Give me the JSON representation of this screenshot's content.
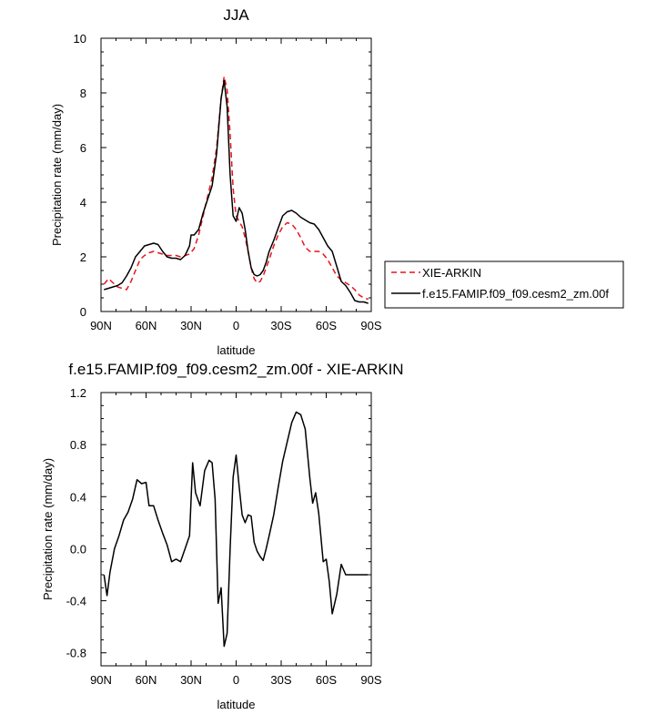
{
  "chart_data": [
    {
      "type": "line",
      "title": "JJA",
      "xlabel": "latitude",
      "ylabel": "Precipitation rate (mm/day)",
      "xlim": [
        -90,
        90
      ],
      "ylim": [
        0,
        10
      ],
      "xticks": [
        {
          "v": -90,
          "label": "90N"
        },
        {
          "v": -60,
          "label": "60N"
        },
        {
          "v": -30,
          "label": "30N"
        },
        {
          "v": 0,
          "label": "0"
        },
        {
          "v": 30,
          "label": "30S"
        },
        {
          "v": 60,
          "label": "60S"
        },
        {
          "v": 90,
          "label": "90S"
        }
      ],
      "yticks": [
        {
          "v": 0,
          "label": "0"
        },
        {
          "v": 2,
          "label": "2"
        },
        {
          "v": 4,
          "label": "4"
        },
        {
          "v": 6,
          "label": "6"
        },
        {
          "v": 8,
          "label": "8"
        },
        {
          "v": 10,
          "label": "10"
        }
      ],
      "series": [
        {
          "name": "XIE-ARKIN",
          "color": "#e8141c",
          "dash": "dashed",
          "x": [
            -88,
            -85,
            -82,
            -79,
            -76,
            -73,
            -70,
            -67,
            -64,
            -61,
            -58,
            -55,
            -52,
            -49,
            -46,
            -43,
            -40,
            -37,
            -34,
            -31,
            -28,
            -25,
            -22,
            -19,
            -16,
            -13,
            -10,
            -8,
            -6,
            -4,
            -2,
            0,
            2,
            4,
            6,
            8,
            10,
            12,
            14,
            16,
            18,
            20,
            22,
            25,
            28,
            31,
            34,
            37,
            40,
            43,
            46,
            49,
            52,
            55,
            58,
            61,
            64,
            67,
            70,
            73,
            76,
            79,
            82,
            85,
            88
          ],
          "y": [
            1.0,
            1.2,
            1.05,
            0.9,
            0.85,
            0.8,
            1.1,
            1.5,
            1.9,
            2.05,
            2.15,
            2.2,
            2.15,
            2.1,
            2.05,
            2.05,
            2.05,
            2.0,
            2.05,
            2.1,
            2.3,
            2.8,
            3.5,
            4.2,
            4.9,
            6.0,
            7.8,
            8.6,
            8.1,
            6.5,
            4.5,
            3.5,
            3.3,
            3.1,
            2.7,
            2.2,
            1.6,
            1.2,
            1.05,
            1.1,
            1.3,
            1.6,
            1.9,
            2.4,
            2.8,
            3.1,
            3.25,
            3.2,
            3.0,
            2.7,
            2.35,
            2.2,
            2.2,
            2.2,
            2.1,
            1.9,
            1.6,
            1.3,
            1.15,
            1.05,
            0.95,
            0.8,
            0.6,
            0.5,
            0.45
          ]
        },
        {
          "name": "f.e15.FAMIP.f09_f09.cesm2_zm.00f",
          "color": "#000000",
          "dash": "solid",
          "x": [
            -88,
            -85,
            -82,
            -79,
            -76,
            -73,
            -70,
            -67,
            -64,
            -61,
            -58,
            -55,
            -52,
            -49,
            -46,
            -43,
            -40,
            -37,
            -34,
            -31,
            -30,
            -28,
            -25,
            -22,
            -19,
            -16,
            -13,
            -10,
            -8,
            -6,
            -4,
            -2,
            0,
            2,
            4,
            6,
            8,
            10,
            12,
            14,
            16,
            18,
            20,
            22,
            25,
            28,
            31,
            34,
            37,
            40,
            43,
            46,
            49,
            52,
            55,
            58,
            61,
            64,
            67,
            70,
            73,
            76,
            79,
            82,
            85,
            88
          ],
          "y": [
            0.8,
            0.85,
            0.9,
            0.95,
            1.05,
            1.3,
            1.6,
            2.0,
            2.2,
            2.4,
            2.45,
            2.5,
            2.45,
            2.2,
            2.0,
            1.95,
            1.95,
            1.9,
            2.05,
            2.4,
            2.8,
            2.8,
            3.0,
            3.6,
            4.1,
            4.6,
            5.8,
            7.8,
            8.45,
            7.5,
            5.0,
            3.5,
            3.3,
            3.8,
            3.6,
            3.0,
            2.2,
            1.6,
            1.35,
            1.3,
            1.35,
            1.5,
            1.8,
            2.2,
            2.6,
            3.05,
            3.5,
            3.65,
            3.7,
            3.6,
            3.45,
            3.35,
            3.25,
            3.2,
            3.0,
            2.7,
            2.4,
            2.2,
            1.65,
            1.1,
            0.95,
            0.7,
            0.4,
            0.35,
            0.35,
            0.3
          ]
        }
      ],
      "legend": "right"
    },
    {
      "type": "line",
      "title": "f.e15.FAMIP.f09_f09.cesm2_zm.00f - XIE-ARKIN",
      "xlabel": "latitude",
      "ylabel": "Precipitation rate (mm/day)",
      "xlim": [
        -90,
        90
      ],
      "ylim": [
        -0.9,
        1.2
      ],
      "xticks": [
        {
          "v": -90,
          "label": "90N"
        },
        {
          "v": -60,
          "label": "60N"
        },
        {
          "v": -30,
          "label": "30N"
        },
        {
          "v": 0,
          "label": "0"
        },
        {
          "v": 30,
          "label": "30S"
        },
        {
          "v": 60,
          "label": "60S"
        },
        {
          "v": 90,
          "label": "90S"
        }
      ],
      "yticks": [
        {
          "v": -0.8,
          "label": "-0.8"
        },
        {
          "v": -0.4,
          "label": "-0.4"
        },
        {
          "v": 0.0,
          "label": "0.0"
        },
        {
          "v": 0.4,
          "label": "0.4"
        },
        {
          "v": 0.8,
          "label": "0.8"
        },
        {
          "v": 1.2,
          "label": "1.2"
        }
      ],
      "series": [
        {
          "color": "#000000",
          "dash": "solid",
          "x": [
            -88,
            -86,
            -84,
            -81,
            -78,
            -75,
            -72,
            -69,
            -66,
            -63,
            -60,
            -58,
            -55,
            -52,
            -49,
            -46,
            -43,
            -40,
            -37,
            -34,
            -31,
            -29,
            -27,
            -24,
            -21,
            -18,
            -16,
            -14,
            -12,
            -10,
            -8,
            -6,
            -4,
            -2,
            0,
            2,
            4,
            6,
            8,
            10,
            12,
            14,
            16,
            18,
            20,
            22,
            25,
            28,
            31,
            34,
            37,
            40,
            43,
            46,
            49,
            51,
            53,
            55,
            58,
            60,
            62,
            64,
            67,
            70,
            73,
            76,
            79,
            82,
            85,
            88
          ],
          "y": [
            -0.2,
            -0.36,
            -0.18,
            0.0,
            0.1,
            0.22,
            0.28,
            0.38,
            0.53,
            0.5,
            0.51,
            0.33,
            0.33,
            0.22,
            0.12,
            0.03,
            -0.1,
            -0.08,
            -0.1,
            0.0,
            0.1,
            0.66,
            0.43,
            0.33,
            0.6,
            0.68,
            0.66,
            0.38,
            -0.42,
            -0.3,
            -0.75,
            -0.65,
            0.0,
            0.55,
            0.72,
            0.48,
            0.26,
            0.2,
            0.26,
            0.25,
            0.05,
            -0.02,
            -0.06,
            -0.09,
            0.0,
            0.1,
            0.26,
            0.47,
            0.67,
            0.82,
            0.97,
            1.05,
            1.03,
            0.92,
            0.55,
            0.35,
            0.43,
            0.27,
            -0.1,
            -0.08,
            -0.25,
            -0.5,
            -0.35,
            -0.12,
            -0.2,
            -0.2,
            -0.2,
            -0.2,
            -0.2,
            -0.2
          ]
        }
      ]
    }
  ]
}
